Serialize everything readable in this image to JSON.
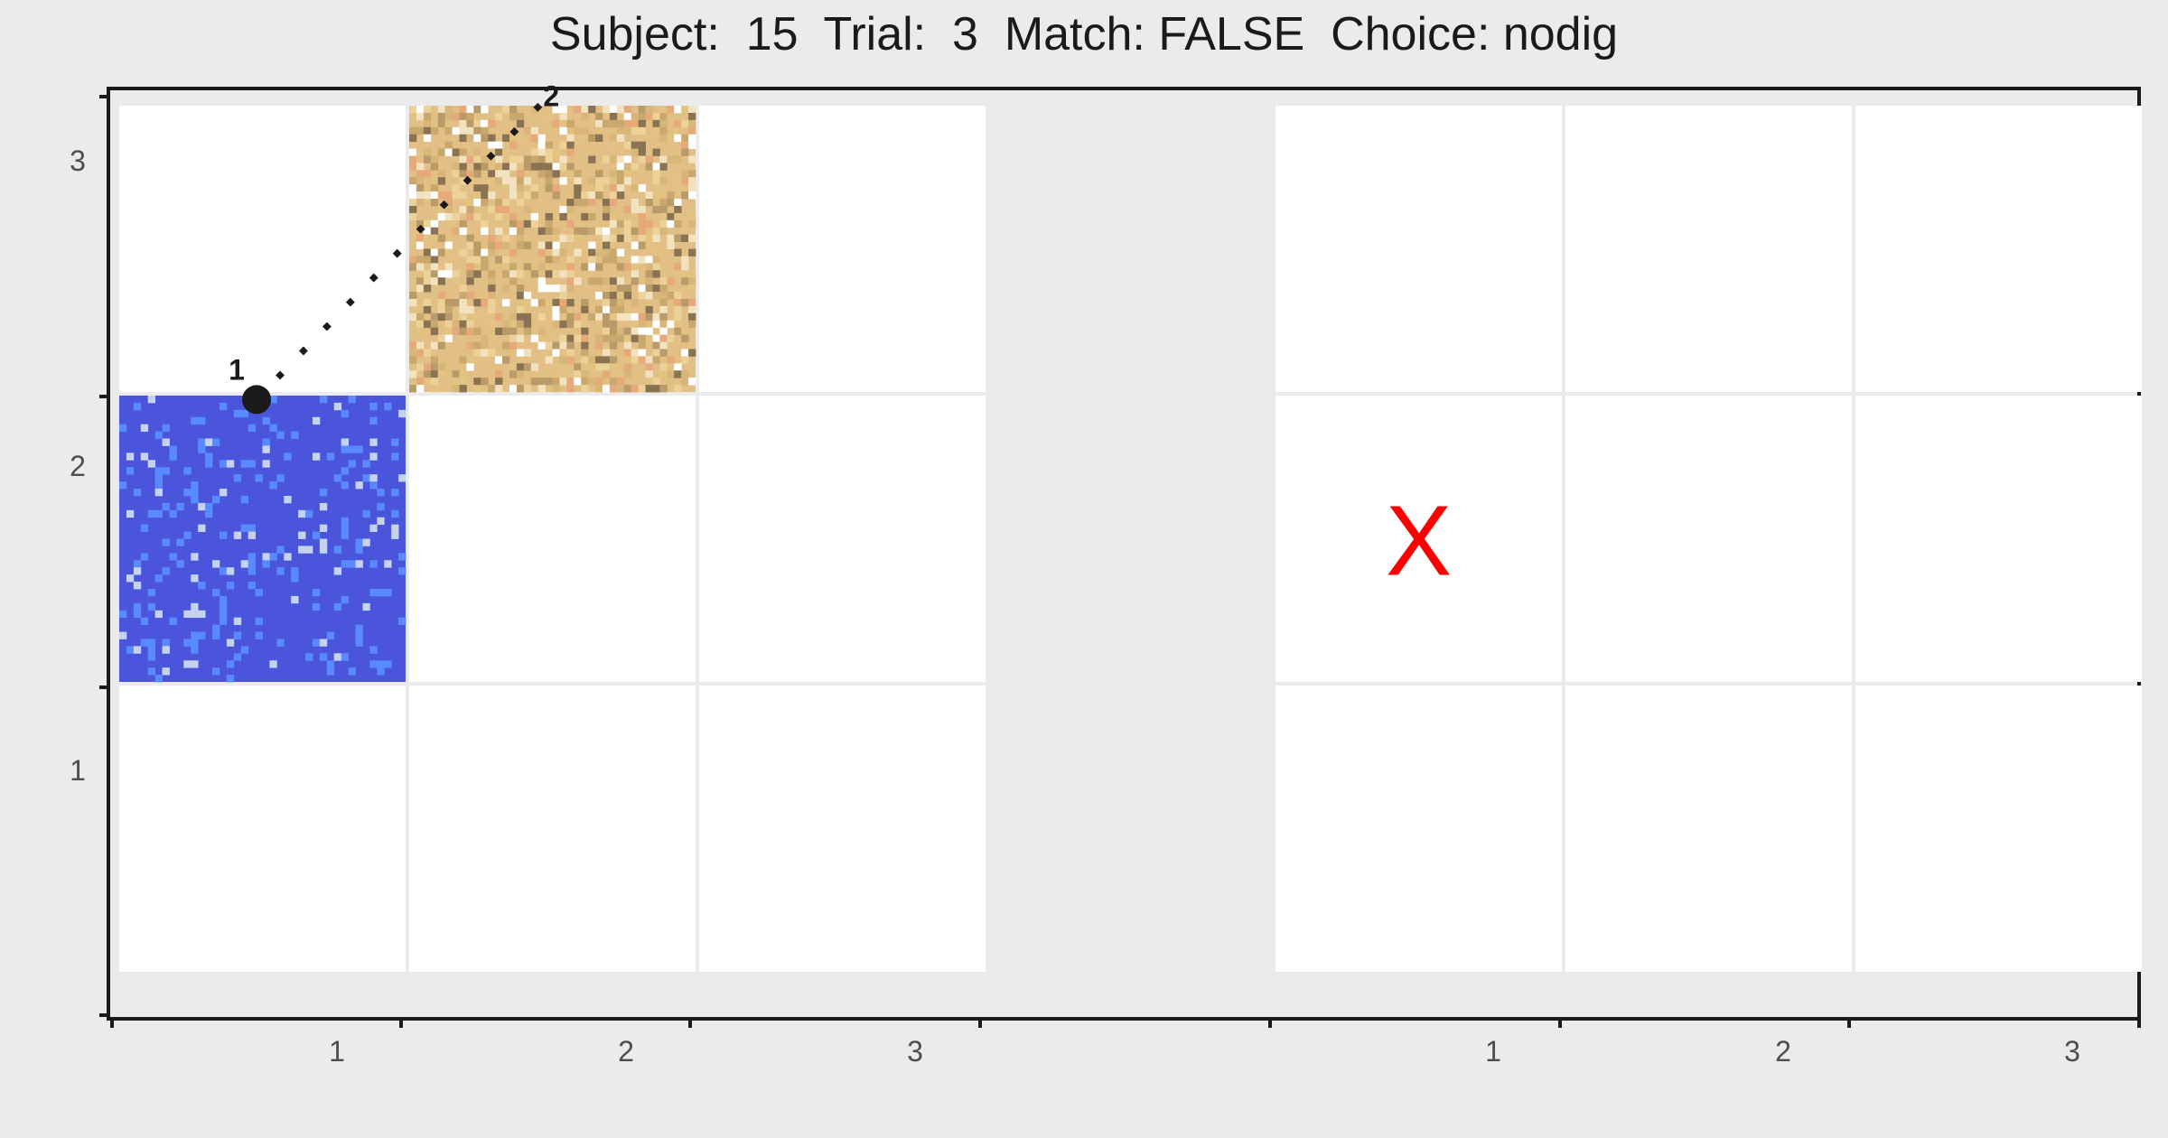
{
  "title": "Subject:  15  Trial:  3  Match: FALSE  Choice: nodig",
  "colors": {
    "background": "#ebebeb",
    "panel": "#ffffff",
    "grid": "#e3e3e3",
    "axis": "#1a1a1a",
    "water_base": "#4a55dc",
    "water_accent": "#5a8aff",
    "water_light": "#c6d3f0",
    "sand_base": "#e2bf84",
    "sand_palette": [
      "#e3c381",
      "#d8b67a",
      "#ecd198",
      "#c9a86e",
      "#f2e2c0",
      "#ffffff",
      "#8a7352",
      "#e6a97a",
      "#b89b68"
    ],
    "path": "#1a1a1a",
    "marker_x": "#ff0000"
  },
  "chart_data": {
    "type": "scatter",
    "x_ticks": [
      "1",
      "2",
      "3",
      "1",
      "2",
      "3"
    ],
    "y_ticks": [
      "1",
      "2",
      "3"
    ],
    "left_grid": {
      "columns": 3,
      "rows": 3,
      "filled_tiles": [
        {
          "col": 1,
          "row": 2,
          "texture": "water"
        },
        {
          "col": 2,
          "row": 3,
          "texture": "sand"
        }
      ],
      "path": {
        "start": {
          "x": 1.48,
          "y": 2.48
        },
        "end": {
          "x": 2.49,
          "y": 3.53
        },
        "start_label": "1",
        "end_label": "2"
      }
    },
    "right_grid": {
      "columns": 3,
      "rows": 3,
      "marker": {
        "col": 1,
        "row": 2,
        "symbol": "X"
      }
    }
  }
}
